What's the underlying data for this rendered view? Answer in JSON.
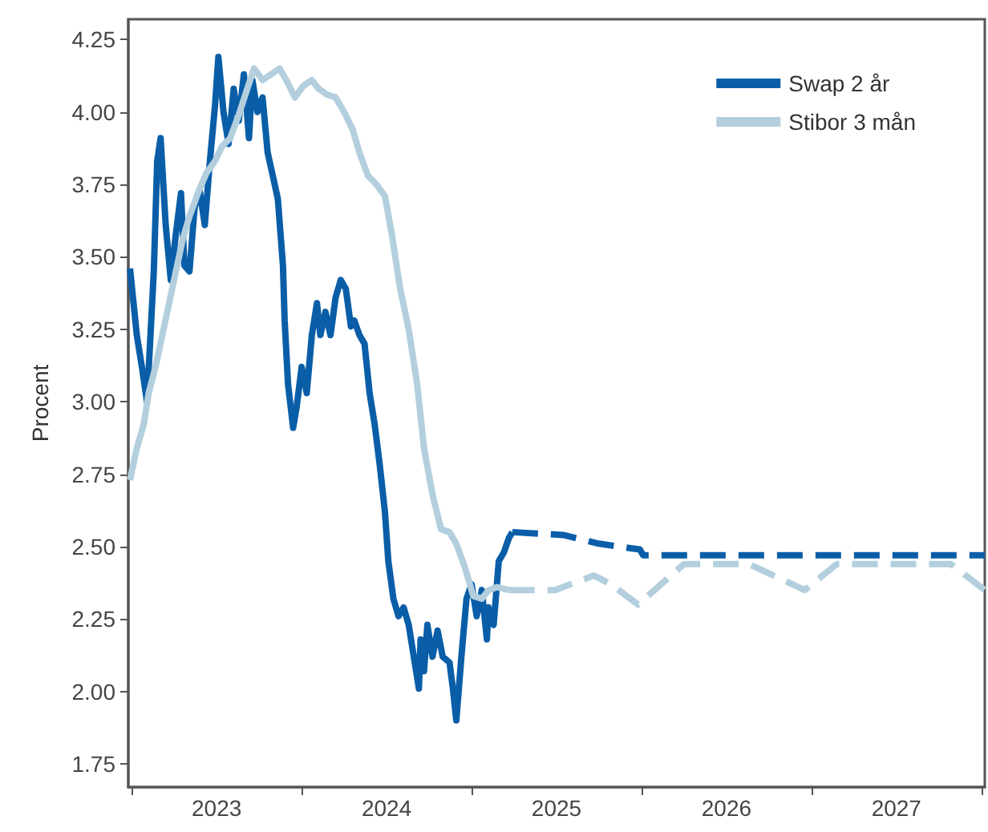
{
  "chart_data": {
    "type": "line",
    "ylabel": "Procent",
    "xlim": [
      2022.98,
      2028.02
    ],
    "ylim": [
      1.67,
      4.32
    ],
    "xticks": [
      {
        "value": 2023,
        "label": null
      },
      {
        "value": 2023.5,
        "label": "2023"
      },
      {
        "value": 2024,
        "label": null
      },
      {
        "value": 2024.5,
        "label": "2024"
      },
      {
        "value": 2025,
        "label": null
      },
      {
        "value": 2025.5,
        "label": "2025"
      },
      {
        "value": 2026,
        "label": null
      },
      {
        "value": 2026.5,
        "label": "2026"
      },
      {
        "value": 2027,
        "label": null
      },
      {
        "value": 2027.5,
        "label": "2027"
      },
      {
        "value": 2028,
        "label": null
      }
    ],
    "yticks": [
      1.75,
      {
        "value": 2,
        "label": "2.00"
      },
      2.25,
      {
        "value": 2.5,
        "label": "2.50"
      },
      2.75,
      {
        "value": 3,
        "label": "3.00"
      },
      3.25,
      {
        "value": 3.5,
        "label": "3.50"
      },
      3.75,
      {
        "value": 4,
        "label": "4.00"
      },
      4.25
    ],
    "grid": false,
    "legend": "top right",
    "marker": "none",
    "series": [
      {
        "name": "Swap 2 år",
        "color": "#0a5ea8",
        "line_style": "solid",
        "x": [
          2022.99,
          2023.03,
          2023.06,
          2023.09,
          2023.13,
          2023.15,
          2023.17,
          2023.2,
          2023.23,
          2023.26,
          2023.29,
          2023.31,
          2023.34,
          2023.37,
          2023.4,
          2023.43,
          2023.46,
          2023.49,
          2023.51,
          2023.54,
          2023.57,
          2023.6,
          2023.63,
          2023.66,
          2023.69,
          2023.71,
          2023.74,
          2023.77,
          2023.8,
          2023.83,
          2023.86,
          2023.89,
          2023.9,
          2023.92,
          2023.95,
          2023.97,
          2024.0,
          2024.03,
          2024.06,
          2024.09,
          2024.11,
          2024.14,
          2024.17,
          2024.2,
          2024.23,
          2024.26,
          2024.29,
          2024.31,
          2024.34,
          2024.37,
          2024.4,
          2024.43,
          2024.46,
          2024.49,
          2024.51,
          2024.54,
          2024.57,
          2024.6,
          2024.63,
          2024.66,
          2024.69,
          2024.7,
          2024.72,
          2024.74,
          2024.77,
          2024.8,
          2024.83,
          2024.87,
          2024.89,
          2024.91,
          2024.94,
          2024.97,
          2025.0,
          2025.03,
          2025.06,
          2025.09,
          2025.1,
          2025.13,
          2025.16,
          2025.19,
          2025.22,
          2025.24
        ],
        "values": [
          3.46,
          3.23,
          3.12,
          3.0,
          3.45,
          3.83,
          3.91,
          3.61,
          3.42,
          3.58,
          3.72,
          3.47,
          3.45,
          3.67,
          3.73,
          3.61,
          3.83,
          4.02,
          4.19,
          4.0,
          3.89,
          4.08,
          3.97,
          4.13,
          3.91,
          4.11,
          4.0,
          4.05,
          3.86,
          3.78,
          3.7,
          3.47,
          3.28,
          3.06,
          2.91,
          2.98,
          3.12,
          3.03,
          3.23,
          3.34,
          3.23,
          3.31,
          3.23,
          3.36,
          3.42,
          3.39,
          3.26,
          3.28,
          3.23,
          3.2,
          3.03,
          2.92,
          2.78,
          2.62,
          2.45,
          2.32,
          2.26,
          2.29,
          2.23,
          2.12,
          2.01,
          2.18,
          2.07,
          2.23,
          2.12,
          2.21,
          2.12,
          2.1,
          2.01,
          1.9,
          2.12,
          2.32,
          2.37,
          2.26,
          2.35,
          2.18,
          2.29,
          2.23,
          2.45,
          2.48,
          2.53,
          2.55
        ]
      },
      {
        "color": "#0a5ea8",
        "line_style": "dashed",
        "x": [
          2025.24,
          2025.54,
          2025.75,
          2025.99,
          2026.01,
          2028.02
        ],
        "values": [
          2.55,
          2.54,
          2.51,
          2.49,
          2.47,
          2.47
        ]
      },
      {
        "name": "Stibor 3 mån",
        "color": "#b3cfdd",
        "line_style": "solid",
        "x": [
          2022.99,
          2023.03,
          2023.07,
          2023.1,
          2023.14,
          2023.18,
          2023.22,
          2023.26,
          2023.3,
          2023.34,
          2023.39,
          2023.44,
          2023.49,
          2023.53,
          2023.58,
          2023.63,
          2023.68,
          2023.72,
          2023.77,
          2023.82,
          2023.87,
          2023.91,
          2023.96,
          2024.01,
          2024.06,
          2024.1,
          2024.15,
          2024.2,
          2024.25,
          2024.3,
          2024.34,
          2024.39,
          2024.44,
          2024.49,
          2024.53,
          2024.58,
          2024.63,
          2024.68,
          2024.72,
          2024.77,
          2024.82,
          2024.87,
          2024.91,
          2024.96,
          2025.01,
          2025.06,
          2025.1,
          2025.15,
          2025.22
        ],
        "values": [
          2.73,
          2.84,
          2.92,
          3.03,
          3.12,
          3.23,
          3.34,
          3.45,
          3.56,
          3.64,
          3.72,
          3.79,
          3.83,
          3.88,
          3.91,
          3.99,
          4.08,
          4.15,
          4.11,
          4.13,
          4.15,
          4.11,
          4.05,
          4.09,
          4.11,
          4.08,
          4.06,
          4.05,
          4.0,
          3.94,
          3.86,
          3.78,
          3.75,
          3.71,
          3.58,
          3.39,
          3.25,
          3.06,
          2.84,
          2.68,
          2.56,
          2.55,
          2.51,
          2.43,
          2.33,
          2.32,
          2.35,
          2.36,
          2.35
        ]
      },
      {
        "color": "#b3cfdd",
        "line_style": "dashed",
        "x": [
          2025.22,
          2025.49,
          2025.72,
          2025.82,
          2025.98,
          2026.25,
          2026.63,
          2026.96,
          2027.15,
          2027.82,
          2028.02
        ],
        "values": [
          2.35,
          2.35,
          2.4,
          2.37,
          2.3,
          2.44,
          2.44,
          2.35,
          2.44,
          2.44,
          2.35
        ]
      }
    ]
  }
}
